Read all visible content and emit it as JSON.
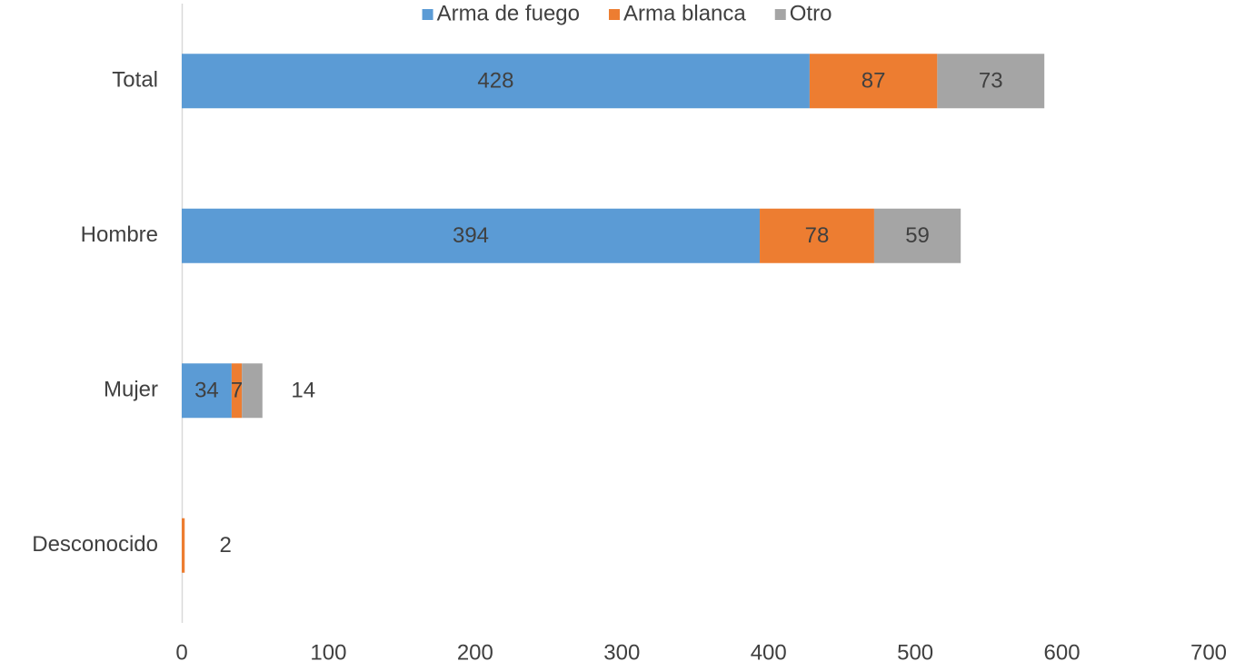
{
  "chart_data": {
    "type": "hbar-stacked",
    "categories": [
      "Total",
      "Hombre",
      "Mujer",
      "Desconocido"
    ],
    "series": [
      {
        "name": "Arma de fuego",
        "color": "#5b9bd5",
        "values": [
          428,
          394,
          34,
          null
        ]
      },
      {
        "name": "Arma blanca",
        "color": "#ed7d31",
        "values": [
          87,
          78,
          7,
          2
        ]
      },
      {
        "name": "Otro",
        "color": "#a5a5a5",
        "values": [
          73,
          59,
          14,
          null
        ]
      }
    ],
    "xlim": [
      0,
      700
    ],
    "xticks": [
      0,
      100,
      200,
      300,
      400,
      500,
      600,
      700
    ],
    "grid": false,
    "legend": "top"
  }
}
